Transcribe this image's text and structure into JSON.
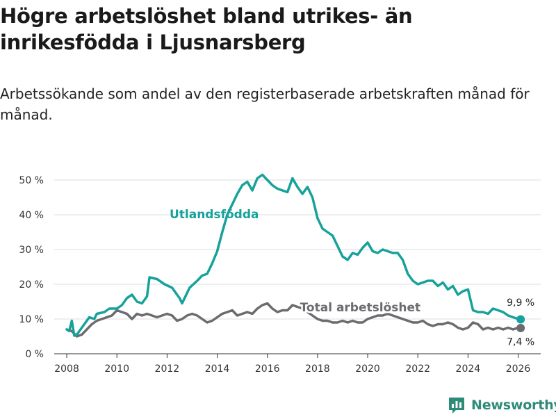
{
  "title": "Högre arbetslöshet bland utrikes- än inrikesfödda i Ljusnarsberg",
  "subtitle": "Arbetssökande som andel av den registerbaserade arbetskraften månad för månad.",
  "brand": {
    "name": "Newsworthy",
    "icon": "bar-chart-logo-icon"
  },
  "colors": {
    "foreign_born": "#16a29a",
    "total": "#6b6b70",
    "grid": "#dddddd",
    "brand": "#2e8b7a"
  },
  "chart_data": {
    "type": "line",
    "title": "Högre arbetslöshet bland utrikes- än inrikesfödda i Ljusnarsberg",
    "xlabel": "",
    "ylabel": "",
    "xlim": [
      2007.5,
      2026.9
    ],
    "ylim": [
      0,
      52
    ],
    "grid": true,
    "x_ticks": [
      2008,
      2010,
      2012,
      2014,
      2016,
      2018,
      2020,
      2022,
      2024,
      2026
    ],
    "x_tick_labels": [
      "2008",
      "2010",
      "2012",
      "2014",
      "2016",
      "2018",
      "2020",
      "2022",
      "2024",
      "2026"
    ],
    "y_ticks": [
      0,
      10,
      20,
      30,
      40,
      50
    ],
    "y_tick_labels": [
      "0 %",
      "10 %",
      "20 %",
      "30 %",
      "40 %",
      "50 %"
    ],
    "series": [
      {
        "name": "Utlandsfödda",
        "label": "Utlandsfödda",
        "color": "#16a29a",
        "end_label": "9,9 %",
        "x": [
          2008.0,
          2008.1,
          2008.2,
          2008.3,
          2008.4,
          2008.6,
          2008.8,
          2008.9,
          2009.1,
          2009.2,
          2009.5,
          2009.7,
          2010.0,
          2010.2,
          2010.4,
          2010.6,
          2010.8,
          2011.0,
          2011.2,
          2011.3,
          2011.6,
          2011.9,
          2012.2,
          2012.4,
          2012.5,
          2012.6,
          2012.9,
          2013.2,
          2013.4,
          2013.6,
          2013.8,
          2014.0,
          2014.2,
          2014.4,
          2014.6,
          2014.8,
          2015.0,
          2015.2,
          2015.4,
          2015.6,
          2015.8,
          2016.0,
          2016.2,
          2016.4,
          2016.6,
          2016.8,
          2017.0,
          2017.2,
          2017.4,
          2017.6,
          2017.8,
          2018.0,
          2018.2,
          2018.4,
          2018.6,
          2018.8,
          2019.0,
          2019.2,
          2019.4,
          2019.6,
          2019.8,
          2020.0,
          2020.2,
          2020.4,
          2020.6,
          2020.8,
          2021.0,
          2021.2,
          2021.4,
          2021.6,
          2021.8,
          2022.0,
          2022.2,
          2022.4,
          2022.6,
          2022.8,
          2023.0,
          2023.2,
          2023.4,
          2023.6,
          2023.8,
          2024.0,
          2024.2,
          2024.4,
          2024.6,
          2024.8,
          2025.0,
          2025.2,
          2025.4,
          2025.6,
          2025.8,
          2026.0,
          2026.1
        ],
        "values": [
          7,
          6.5,
          9.5,
          5.2,
          5.5,
          7.5,
          9.5,
          10.5,
          10.0,
          11.5,
          12.0,
          13.0,
          13.0,
          14.0,
          16.0,
          17.0,
          15.0,
          14.5,
          16.5,
          22.0,
          21.5,
          20.0,
          19.0,
          17.0,
          16.0,
          14.5,
          19.0,
          21.0,
          22.5,
          23.0,
          26.0,
          29.5,
          35.0,
          40.0,
          43.0,
          46.0,
          48.5,
          49.5,
          47.0,
          50.5,
          51.5,
          50.0,
          48.5,
          47.5,
          47.0,
          46.5,
          50.5,
          48.0,
          46.0,
          48.0,
          45.0,
          39.0,
          36.0,
          35.0,
          34.0,
          31.0,
          28.0,
          27.0,
          29.0,
          28.5,
          30.5,
          32.0,
          29.5,
          29.0,
          30.0,
          29.5,
          29.0,
          29.0,
          27.0,
          23.0,
          21.0,
          20.0,
          20.5,
          21.0,
          21.0,
          19.5,
          20.5,
          18.5,
          19.5,
          17.0,
          18.0,
          18.5,
          12.5,
          12.0,
          12.0,
          11.5,
          13.0,
          12.5,
          12.0,
          11.0,
          10.5,
          10.0,
          9.9
        ]
      },
      {
        "name": "Total arbetslöshet",
        "label": "Total arbetslöshet",
        "color": "#6b6b70",
        "end_label": "7,4 %",
        "x": [
          2008.0,
          2008.2,
          2008.4,
          2008.6,
          2008.8,
          2009.0,
          2009.2,
          2009.4,
          2009.6,
          2009.8,
          2010.0,
          2010.2,
          2010.4,
          2010.6,
          2010.8,
          2011.0,
          2011.2,
          2011.4,
          2011.6,
          2011.8,
          2012.0,
          2012.2,
          2012.4,
          2012.6,
          2012.8,
          2013.0,
          2013.2,
          2013.4,
          2013.6,
          2013.8,
          2014.0,
          2014.2,
          2014.4,
          2014.6,
          2014.8,
          2015.0,
          2015.2,
          2015.4,
          2015.6,
          2015.8,
          2016.0,
          2016.2,
          2016.4,
          2016.6,
          2016.8,
          2017.0,
          2017.2,
          2017.4,
          2017.6,
          2017.8,
          2018.0,
          2018.2,
          2018.4,
          2018.6,
          2018.8,
          2019.0,
          2019.2,
          2019.4,
          2019.6,
          2019.8,
          2020.0,
          2020.2,
          2020.4,
          2020.6,
          2020.8,
          2021.0,
          2021.2,
          2021.4,
          2021.6,
          2021.8,
          2022.0,
          2022.2,
          2022.4,
          2022.6,
          2022.8,
          2023.0,
          2023.2,
          2023.4,
          2023.6,
          2023.8,
          2024.0,
          2024.2,
          2024.4,
          2024.6,
          2024.8,
          2025.0,
          2025.2,
          2025.4,
          2025.6,
          2025.8,
          2026.0,
          2026.1
        ],
        "values": [
          7,
          6.5,
          5.0,
          5.5,
          7.0,
          8.5,
          9.5,
          10.0,
          10.5,
          11.0,
          12.5,
          12.0,
          11.5,
          10.0,
          11.5,
          11.0,
          11.5,
          11.0,
          10.5,
          11.0,
          11.5,
          11.0,
          9.5,
          10.0,
          11.0,
          11.5,
          11.0,
          10.0,
          9.0,
          9.5,
          10.5,
          11.5,
          12.0,
          12.5,
          11.0,
          11.5,
          12.0,
          11.5,
          13.0,
          14.0,
          14.5,
          13.0,
          12.0,
          12.5,
          12.5,
          14.0,
          13.5,
          13.0,
          12.0,
          11.0,
          10.0,
          9.5,
          9.5,
          9.0,
          9.0,
          9.5,
          9.0,
          9.5,
          9.0,
          9.0,
          10.0,
          10.5,
          11.0,
          11.0,
          11.5,
          11.0,
          10.5,
          10.0,
          9.5,
          9.0,
          9.0,
          9.5,
          8.5,
          8.0,
          8.5,
          8.5,
          9.0,
          8.5,
          7.5,
          7.0,
          7.5,
          9.0,
          8.5,
          7.0,
          7.5,
          7.0,
          7.5,
          7.0,
          7.5,
          7.0,
          7.5,
          7.4
        ]
      }
    ]
  }
}
